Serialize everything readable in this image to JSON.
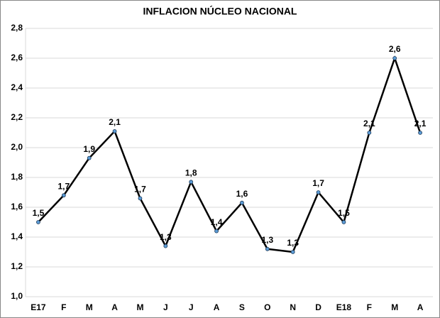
{
  "chart_data": {
    "type": "line",
    "title": "INFLACION NÚCLEO NACIONAL",
    "categories": [
      "E17",
      "F",
      "M",
      "A",
      "M",
      "J",
      "J",
      "A",
      "S",
      "O",
      "N",
      "D",
      "E18",
      "F",
      "M",
      "A"
    ],
    "values": [
      1.5,
      1.68,
      1.93,
      2.11,
      1.66,
      1.34,
      1.77,
      1.44,
      1.63,
      1.32,
      1.3,
      1.7,
      1.5,
      2.1,
      2.6,
      2.1
    ],
    "value_labels": [
      "1,5",
      "1,7",
      "1,9",
      "2,1",
      "1,7",
      "1,3",
      "1,8",
      "1,4",
      "1,6",
      "1,3",
      "1,3",
      "1,7",
      "1,5",
      "2,1",
      "2,6",
      "2,1"
    ],
    "color": "#000000",
    "marker_color": "#5b9bd5",
    "ylim": [
      1.0,
      2.8
    ],
    "yticks": [
      {
        "value": 1.0,
        "label": "1,0"
      },
      {
        "value": 1.2,
        "label": "1,2"
      },
      {
        "value": 1.4,
        "label": "1,4"
      },
      {
        "value": 1.6,
        "label": "1,6"
      },
      {
        "value": 1.8,
        "label": "1,8"
      },
      {
        "value": 2.0,
        "label": "2,0"
      },
      {
        "value": 2.2,
        "label": "2,2"
      },
      {
        "value": 2.4,
        "label": "2,4"
      },
      {
        "value": 2.6,
        "label": "2,6"
      },
      {
        "value": 2.8,
        "label": "2,8"
      }
    ],
    "grid": true
  }
}
